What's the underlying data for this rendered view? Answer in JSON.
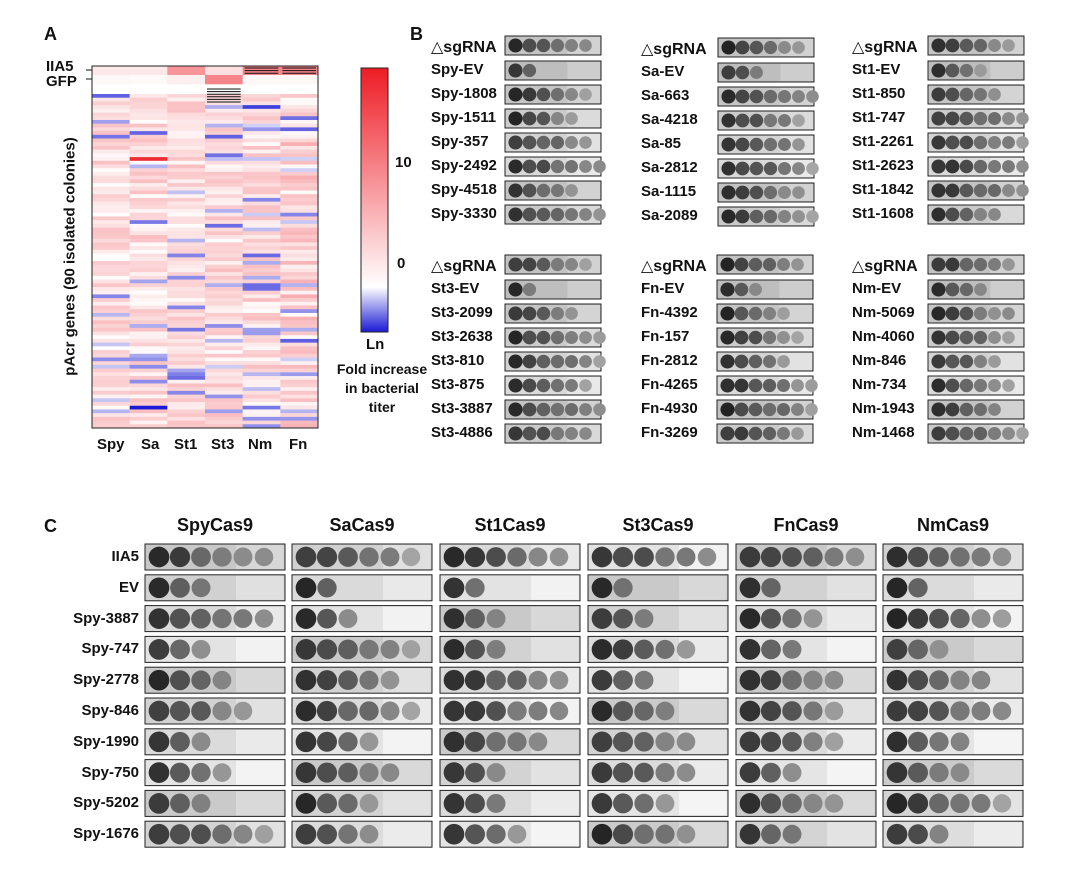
{
  "panel_labels": {
    "a": "A",
    "b": "B",
    "c": "C"
  },
  "panel_a": {
    "title": "Heatmap of fold increase in bacterial titer",
    "y_axis_label": "pAcr genes (90 isolated colonies)",
    "control_rows": [
      "IIA5",
      "GFP"
    ],
    "columns": [
      "Spy",
      "Sa",
      "St1",
      "St3",
      "Nm",
      "Fn"
    ],
    "colorbar": {
      "ticks": [
        "10",
        "0"
      ],
      "unit": "Ln",
      "label": "Fold increase in bacterial titer",
      "colors": {
        "high": "#ee1c25",
        "mid": "#ffffff",
        "low": "#1a1ad6"
      }
    }
  },
  "chart_data": {
    "type": "heatmap",
    "title": "Fold increase in bacterial titer (Ln)",
    "xlabel": "",
    "ylabel": "pAcr genes (90 isolated colonies)",
    "columns": [
      "Spy",
      "Sa",
      "St1",
      "St3",
      "Nm",
      "Fn"
    ],
    "colorbar_range": [
      -3,
      15
    ],
    "controls": [
      {
        "row": "IIA5",
        "values": [
          1.5,
          1.5,
          7,
          2,
          8,
          8
        ]
      },
      {
        "row": "GFP",
        "values": [
          0.5,
          0.3,
          1.0,
          8,
          0.5,
          0.5
        ]
      }
    ],
    "n_genes": 90,
    "notes": "Individual per-gene values are not labeled; cells are mostly light red (~0-5) with sparse blue (negative) rows and a few deep red/blue outliers."
  },
  "panel_b": {
    "groups": [
      {
        "header": "△sgRNA",
        "rows": [
          "Spy-EV",
          "Spy-1808",
          "Spy-1511",
          "Spy-357",
          "Spy-2492",
          "Spy-4518",
          "Spy-3330"
        ]
      },
      {
        "header": "△sgRNA",
        "rows": [
          "Sa-EV",
          "Sa-663",
          "Sa-4218",
          "Sa-85",
          "Sa-2812",
          "Sa-1115",
          "Sa-2089"
        ]
      },
      {
        "header": "△sgRNA",
        "rows": [
          "St1-EV",
          "St1-850",
          "St1-747",
          "St1-2261",
          "St1-2623",
          "St1-1842",
          "St1-1608"
        ]
      },
      {
        "header": "△sgRNA",
        "rows": [
          "St3-EV",
          "St3-2099",
          "St3-2638",
          "St3-810",
          "St3-875",
          "St3-3887",
          "St3-4886"
        ]
      },
      {
        "header": "△sgRNA",
        "rows": [
          "Fn-EV",
          "Fn-4392",
          "Fn-157",
          "Fn-2812",
          "Fn-4265",
          "Fn-4930",
          "Fn-3269"
        ]
      },
      {
        "header": "△sgRNA",
        "rows": [
          "Nm-EV",
          "Nm-5069",
          "Nm-4060",
          "Nm-846",
          "Nm-734",
          "Nm-1943",
          "Nm-1468"
        ]
      }
    ]
  },
  "panel_c": {
    "columns": [
      "SpyCas9",
      "SaCas9",
      "St1Cas9",
      "St3Cas9",
      "FnCas9",
      "NmCas9"
    ],
    "rows": [
      "IIA5",
      "EV",
      "Spy-3887",
      "Spy-747",
      "Spy-2778",
      "Spy-846",
      "Spy-1990",
      "Spy-750",
      "Spy-5202",
      "Spy-1676"
    ]
  }
}
